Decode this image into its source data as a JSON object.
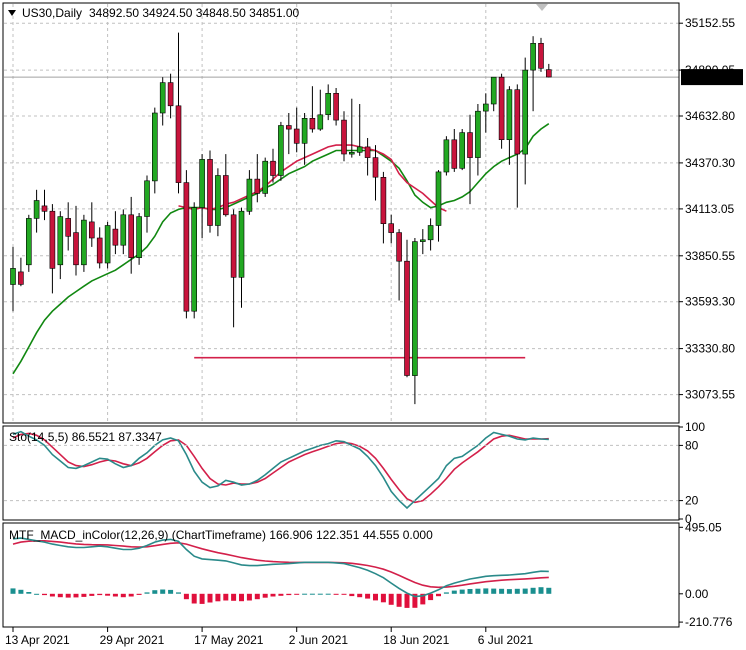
{
  "header": {
    "symbol": "US30,Daily",
    "ohlc": "34892.50 34924.50 34848.50 34851.00"
  },
  "colors": {
    "bull": "#22a822",
    "bear": "#c8143c",
    "ma_fast": "#d3204a",
    "ma_slow": "#118811",
    "level_line": "#d3204a",
    "stoch_main": "#2a8a8a",
    "stoch_signal": "#d3204a",
    "macd_line": "#2a8a8a",
    "macd_signal": "#d3204a",
    "hist_pos": "#1a8f8f",
    "hist_neg": "#e0103c",
    "grid": "#c0c0c0",
    "price_tag_bg": "#000000",
    "price_tag_fg": "#ffffff"
  },
  "chart_data": [
    {
      "type": "candlestick",
      "title": "US30,Daily",
      "ylim": [
        32920,
        35260
      ],
      "yticks": [
        "35152.55",
        "34890.05",
        "34632.80",
        "34370.30",
        "34113.05",
        "33850.55",
        "33593.30",
        "33330.80",
        "33073.55"
      ],
      "ytick_values": [
        35152.55,
        34890.05,
        34632.8,
        34370.3,
        34113.05,
        33850.55,
        33593.3,
        33330.8,
        33073.55
      ],
      "last_price": "34851.00",
      "candles": [
        {
          "o": 33690,
          "h": 33900,
          "l": 33540,
          "c": 33780
        },
        {
          "o": 33760,
          "h": 33840,
          "l": 33680,
          "c": 33690
        },
        {
          "o": 33800,
          "h": 34080,
          "l": 33760,
          "c": 34060
        },
        {
          "o": 34060,
          "h": 34220,
          "l": 33980,
          "c": 34160
        },
        {
          "o": 34130,
          "h": 34220,
          "l": 34050,
          "c": 34100
        },
        {
          "o": 34100,
          "h": 34140,
          "l": 33640,
          "c": 33780
        },
        {
          "o": 33800,
          "h": 34100,
          "l": 33720,
          "c": 34070
        },
        {
          "o": 34060,
          "h": 34150,
          "l": 33880,
          "c": 33960
        },
        {
          "o": 33980,
          "h": 34130,
          "l": 33740,
          "c": 33800
        },
        {
          "o": 33800,
          "h": 34080,
          "l": 33760,
          "c": 34050
        },
        {
          "o": 34040,
          "h": 34150,
          "l": 33900,
          "c": 33950
        },
        {
          "o": 33950,
          "h": 34010,
          "l": 33780,
          "c": 33810
        },
        {
          "o": 33810,
          "h": 34040,
          "l": 33780,
          "c": 34020
        },
        {
          "o": 34000,
          "h": 34100,
          "l": 33860,
          "c": 33910
        },
        {
          "o": 33910,
          "h": 34110,
          "l": 33860,
          "c": 34080
        },
        {
          "o": 34080,
          "h": 34180,
          "l": 33750,
          "c": 33840
        },
        {
          "o": 33840,
          "h": 34090,
          "l": 33800,
          "c": 34070
        },
        {
          "o": 34070,
          "h": 34300,
          "l": 33980,
          "c": 34270
        },
        {
          "o": 34270,
          "h": 34680,
          "l": 34200,
          "c": 34650
        },
        {
          "o": 34650,
          "h": 34850,
          "l": 34580,
          "c": 34820
        },
        {
          "o": 34820,
          "h": 34870,
          "l": 34620,
          "c": 34690
        },
        {
          "o": 34690,
          "h": 35100,
          "l": 34200,
          "c": 34260
        },
        {
          "o": 34260,
          "h": 34330,
          "l": 33500,
          "c": 33540
        },
        {
          "o": 33540,
          "h": 34150,
          "l": 33500,
          "c": 34120
        },
        {
          "o": 34120,
          "h": 34420,
          "l": 33950,
          "c": 34390
        },
        {
          "o": 34390,
          "h": 34440,
          "l": 33980,
          "c": 34020
        },
        {
          "o": 34020,
          "h": 34340,
          "l": 33960,
          "c": 34300
        },
        {
          "o": 34300,
          "h": 34420,
          "l": 34070,
          "c": 34080
        },
        {
          "o": 34080,
          "h": 34110,
          "l": 33450,
          "c": 33730
        },
        {
          "o": 33730,
          "h": 34120,
          "l": 33560,
          "c": 34100
        },
        {
          "o": 34100,
          "h": 34330,
          "l": 34080,
          "c": 34280
        },
        {
          "o": 34280,
          "h": 34420,
          "l": 34150,
          "c": 34200
        },
        {
          "o": 34200,
          "h": 34400,
          "l": 34180,
          "c": 34380
        },
        {
          "o": 34380,
          "h": 34450,
          "l": 34260,
          "c": 34300
        },
        {
          "o": 34300,
          "h": 34600,
          "l": 34270,
          "c": 34580
        },
        {
          "o": 34580,
          "h": 34650,
          "l": 34420,
          "c": 34560
        },
        {
          "o": 34560,
          "h": 34680,
          "l": 34430,
          "c": 34480
        },
        {
          "o": 34480,
          "h": 34650,
          "l": 34360,
          "c": 34620
        },
        {
          "o": 34620,
          "h": 34800,
          "l": 34540,
          "c": 34560
        },
        {
          "o": 34560,
          "h": 34780,
          "l": 34550,
          "c": 34640
        },
        {
          "o": 34640,
          "h": 34810,
          "l": 34610,
          "c": 34760
        },
        {
          "o": 34760,
          "h": 34790,
          "l": 34580,
          "c": 34610
        },
        {
          "o": 34610,
          "h": 34660,
          "l": 34380,
          "c": 34420
        },
        {
          "o": 34420,
          "h": 34730,
          "l": 34400,
          "c": 34430
        },
        {
          "o": 34430,
          "h": 34700,
          "l": 34410,
          "c": 34460
        },
        {
          "o": 34460,
          "h": 34510,
          "l": 34300,
          "c": 34400
        },
        {
          "o": 34400,
          "h": 34470,
          "l": 34160,
          "c": 34290
        },
        {
          "o": 34290,
          "h": 34320,
          "l": 33920,
          "c": 34030
        },
        {
          "o": 34030,
          "h": 34080,
          "l": 33920,
          "c": 33980
        },
        {
          "o": 33980,
          "h": 34000,
          "l": 33600,
          "c": 33820
        },
        {
          "o": 33820,
          "h": 33940,
          "l": 33170,
          "c": 33180
        },
        {
          "o": 33180,
          "h": 33950,
          "l": 33020,
          "c": 33930
        },
        {
          "o": 33930,
          "h": 34000,
          "l": 33860,
          "c": 33940
        },
        {
          "o": 33940,
          "h": 34060,
          "l": 33880,
          "c": 34020
        },
        {
          "o": 34020,
          "h": 34330,
          "l": 33930,
          "c": 34320
        },
        {
          "o": 34320,
          "h": 34520,
          "l": 34300,
          "c": 34500
        },
        {
          "o": 34500,
          "h": 34560,
          "l": 34320,
          "c": 34340
        },
        {
          "o": 34340,
          "h": 34560,
          "l": 34330,
          "c": 34540
        },
        {
          "o": 34540,
          "h": 34640,
          "l": 34140,
          "c": 34400
        },
        {
          "o": 34400,
          "h": 34700,
          "l": 34300,
          "c": 34660
        },
        {
          "o": 34660,
          "h": 34760,
          "l": 34540,
          "c": 34700
        },
        {
          "o": 34700,
          "h": 34850,
          "l": 34660,
          "c": 34850
        },
        {
          "o": 34850,
          "h": 34870,
          "l": 34450,
          "c": 34500
        },
        {
          "o": 34500,
          "h": 34800,
          "l": 34360,
          "c": 34780
        },
        {
          "o": 34780,
          "h": 34810,
          "l": 34120,
          "c": 34420
        },
        {
          "o": 34420,
          "h": 34960,
          "l": 34250,
          "c": 34890
        },
        {
          "o": 34890,
          "h": 35080,
          "l": 34660,
          "c": 35040
        },
        {
          "o": 35040,
          "h": 35070,
          "l": 34880,
          "c": 34900
        },
        {
          "o": 34892.5,
          "h": 34924.5,
          "l": 34848.5,
          "c": 34851
        }
      ],
      "ma_fast": {
        "start": 21,
        "values": [
          34130,
          34120,
          34110,
          34120,
          34110,
          34120,
          34140,
          34150,
          34170,
          34190,
          34210,
          34240,
          34280,
          34320,
          34350,
          34380,
          34400,
          34420,
          34440,
          34460,
          34470,
          34470,
          34470,
          34460,
          34450,
          34440,
          34420,
          34390,
          34310,
          34260,
          34230,
          34200,
          34160,
          34120,
          34100
        ]
      },
      "ma_slow": {
        "values": [
          33190,
          33260,
          33340,
          33420,
          33490,
          33540,
          33580,
          33620,
          33650,
          33680,
          33710,
          33730,
          33750,
          33770,
          33800,
          33830,
          33860,
          33900,
          33960,
          34040,
          34090,
          34110,
          34120,
          34120,
          34120,
          34110,
          34110,
          34120,
          34140,
          34160,
          34180,
          34200,
          34230,
          34250,
          34280,
          34310,
          34330,
          34350,
          34380,
          34400,
          34420,
          34440,
          34440,
          34440,
          34440,
          34440,
          34440,
          34410,
          34380,
          34340,
          34270,
          34190,
          34150,
          34120,
          34130,
          34150,
          34160,
          34180,
          34210,
          34260,
          34310,
          34350,
          34380,
          34400,
          34420,
          34450,
          34520,
          34560,
          34590
        ]
      },
      "level_line": {
        "y": 33280,
        "x_start": 23,
        "x_end": 65
      }
    },
    {
      "type": "line",
      "title": "Sto(14,5,5) 86.5521 87.3347",
      "ylim": [
        0,
        100
      ],
      "yticks": [
        "100",
        "80",
        "20",
        "0"
      ],
      "ytick_values": [
        100,
        80,
        20,
        0
      ],
      "series": [
        {
          "name": "main",
          "values": [
            92,
            95,
            90,
            86,
            80,
            70,
            63,
            56,
            55,
            58,
            62,
            66,
            65,
            60,
            56,
            58,
            66,
            72,
            80,
            86,
            88,
            85,
            70,
            52,
            40,
            34,
            36,
            42,
            40,
            37,
            38,
            42,
            48,
            55,
            62,
            66,
            70,
            74,
            77,
            80,
            82,
            85,
            84,
            80,
            76,
            68,
            58,
            45,
            30,
            20,
            12,
            20,
            28,
            36,
            44,
            58,
            66,
            68,
            74,
            80,
            88,
            94,
            92,
            90,
            87,
            86,
            88,
            87,
            86.55
          ]
        },
        {
          "name": "signal",
          "values": [
            88,
            92,
            93,
            91,
            86,
            78,
            70,
            62,
            58,
            57,
            59,
            62,
            64,
            63,
            60,
            58,
            61,
            66,
            73,
            80,
            85,
            86,
            80,
            68,
            55,
            44,
            38,
            37,
            39,
            38,
            38,
            40,
            44,
            50,
            56,
            62,
            66,
            70,
            73,
            76,
            79,
            82,
            83,
            82,
            79,
            74,
            66,
            55,
            43,
            32,
            22,
            18,
            20,
            27,
            35,
            44,
            54,
            61,
            67,
            73,
            80,
            87,
            90,
            91,
            89,
            87,
            87,
            87,
            87.33
          ]
        }
      ]
    },
    {
      "type": "bar",
      "title": "MTF_MACD_inColor(12,26,9) (ChartTimeframe) 166.906 122.351 44.555 0.000",
      "ylim": [
        -240,
        520
      ],
      "yticks": [
        "495.05",
        "0.00",
        "-210.776"
      ],
      "ytick_values": [
        495.05,
        0.0,
        -210.776
      ],
      "x_labels": [
        "13 Apr 2021",
        "29 Apr 2021",
        "17 May 2021",
        "2 Jun 2021",
        "18 Jun 2021",
        "6 Jul 2021"
      ],
      "x_label_index": [
        0,
        12,
        24,
        36,
        48,
        60
      ],
      "series": [
        {
          "name": "macd",
          "values": [
            410,
            415,
            405,
            395,
            385,
            370,
            360,
            350,
            345,
            345,
            350,
            355,
            350,
            340,
            330,
            330,
            340,
            360,
            385,
            400,
            405,
            390,
            330,
            280,
            260,
            255,
            250,
            245,
            230,
            215,
            210,
            210,
            215,
            220,
            222,
            225,
            230,
            235,
            235,
            235,
            235,
            230,
            225,
            210,
            195,
            175,
            150,
            120,
            80,
            40,
            5,
            -20,
            -15,
            5,
            30,
            60,
            80,
            95,
            110,
            120,
            130,
            135,
            138,
            140,
            145,
            150,
            160,
            168,
            166.9
          ]
        },
        {
          "name": "signal",
          "values": [
            370,
            385,
            392,
            395,
            395,
            390,
            385,
            378,
            372,
            368,
            366,
            365,
            364,
            360,
            355,
            350,
            348,
            350,
            358,
            368,
            376,
            380,
            370,
            352,
            335,
            320,
            306,
            295,
            282,
            270,
            260,
            250,
            244,
            240,
            237,
            235,
            234,
            234,
            234,
            234,
            234,
            233,
            231,
            227,
            220,
            211,
            199,
            183,
            162,
            137,
            110,
            84,
            64,
            52,
            48,
            50,
            56,
            64,
            74,
            82,
            90,
            96,
            101,
            105,
            108,
            111,
            115,
            119,
            122.35
          ]
        },
        {
          "name": "histogram",
          "values": [
            40,
            30,
            13,
            0,
            -10,
            -20,
            -25,
            -28,
            -27,
            -23,
            -16,
            -10,
            -14,
            -20,
            -25,
            -20,
            -8,
            10,
            27,
            32,
            29,
            10,
            -40,
            -72,
            -75,
            -65,
            -56,
            -50,
            -52,
            -55,
            -50,
            -40,
            -29,
            -20,
            -15,
            -10,
            -4,
            1,
            1,
            1,
            1,
            -3,
            -6,
            -17,
            -25,
            -36,
            -49,
            -63,
            -82,
            -97,
            -105,
            -104,
            -79,
            -47,
            -18,
            10,
            24,
            31,
            36,
            38,
            40,
            39,
            37,
            35,
            37,
            39,
            45,
            49,
            44.555
          ]
        }
      ]
    }
  ]
}
